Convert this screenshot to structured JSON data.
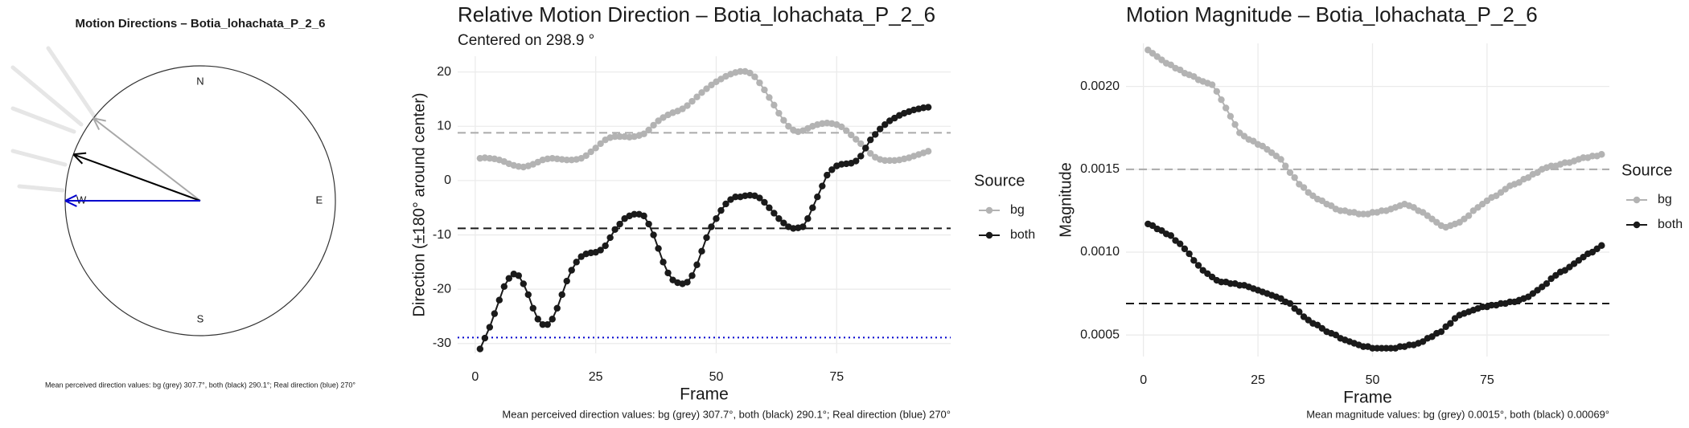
{
  "chart_data": [
    {
      "type": "compass",
      "title": "Motion Directions – Botia_lohachata_P_2_6",
      "labels": [
        "N",
        "E",
        "S",
        "W"
      ],
      "arrows": [
        {
          "color": "#a8a8a8",
          "angle": 307.7
        },
        {
          "color": "#000000",
          "angle": 290.1
        },
        {
          "color": "#0000cd",
          "angle": 270
        }
      ],
      "caption": "Mean perceived direction values: bg (grey) 307.7°, both (black) 290.1°; Real direction (blue) 270°"
    },
    {
      "type": "line",
      "title": "Relative Motion Direction – Botia_lohachata_P_2_6",
      "subtitle": "Centered on  298.9 °",
      "xlabel": "Frame",
      "ylabel": "Direction (±180° around center)",
      "caption": "Mean perceived direction values: bg (grey) 307.7°, both (black) 290.1°; Real direction (blue) 270°",
      "legend_title": "Source",
      "grid": true,
      "xlim": [
        -3.65,
        98.65
      ],
      "xticks": [
        0,
        25,
        50,
        75
      ],
      "ylim": [
        -31.8,
        22.9
      ],
      "yticks": [
        -30,
        -20,
        -10,
        0,
        10,
        20
      ],
      "hlines": [
        {
          "value": 8.8,
          "color": "#aaaaaa",
          "dash": "dashed"
        },
        {
          "value": -8.8,
          "color": "#1a1a1a",
          "dash": "dashed"
        },
        {
          "value": -28.9,
          "color": "#0000cd",
          "dash": "dotted"
        }
      ],
      "x": [
        1,
        2,
        3,
        4,
        5,
        6,
        7,
        8,
        9,
        10,
        11,
        12,
        13,
        14,
        15,
        16,
        17,
        18,
        19,
        20,
        21,
        22,
        23,
        24,
        25,
        26,
        27,
        28,
        29,
        30,
        31,
        32,
        33,
        34,
        35,
        36,
        37,
        38,
        39,
        40,
        41,
        42,
        43,
        44,
        45,
        46,
        47,
        48,
        49,
        50,
        51,
        52,
        53,
        54,
        55,
        56,
        57,
        58,
        59,
        60,
        61,
        62,
        63,
        64,
        65,
        66,
        67,
        68,
        69,
        70,
        71,
        72,
        73,
        74,
        75,
        76,
        77,
        78,
        79,
        80,
        81,
        82,
        83,
        84,
        85,
        86,
        87,
        88,
        89,
        90,
        91,
        92,
        93,
        94
      ],
      "series": [
        {
          "name": "bg",
          "color": "#b3b3b3",
          "values": [
            4.1,
            4.2,
            4.1,
            4.0,
            3.8,
            3.5,
            3.1,
            2.8,
            2.6,
            2.5,
            2.7,
            3.0,
            3.4,
            3.8,
            4.0,
            4.1,
            4.0,
            3.9,
            3.8,
            3.8,
            3.9,
            4.1,
            4.6,
            5.3,
            6.0,
            6.8,
            7.5,
            7.9,
            8.1,
            8.1,
            8.1,
            8.0,
            8.1,
            8.3,
            8.6,
            9.3,
            10.2,
            11.0,
            11.6,
            12.1,
            12.5,
            12.8,
            13.2,
            13.8,
            14.6,
            15.4,
            16.2,
            16.9,
            17.6,
            18.2,
            18.7,
            19.2,
            19.6,
            19.9,
            20.1,
            20.1,
            19.8,
            19.1,
            18.0,
            16.7,
            15.3,
            13.9,
            12.4,
            11.1,
            10.0,
            9.3,
            9.0,
            9.2,
            9.6,
            10.0,
            10.3,
            10.5,
            10.6,
            10.5,
            10.3,
            9.9,
            9.2,
            8.4,
            7.6,
            6.8,
            5.9,
            5.0,
            4.3,
            3.9,
            3.7,
            3.7,
            3.7,
            3.8,
            4.0,
            4.2,
            4.5,
            4.8,
            5.1,
            5.4
          ]
        },
        {
          "name": "both",
          "color": "#1a1a1a",
          "values": [
            -31,
            -29,
            -27,
            -24.5,
            -22,
            -19.5,
            -18,
            -17.2,
            -17.5,
            -19,
            -21,
            -23.5,
            -25.5,
            -26.5,
            -26.5,
            -25.5,
            -23.5,
            -21,
            -18.5,
            -16.5,
            -15,
            -14,
            -13.5,
            -13.3,
            -13.2,
            -12.8,
            -12,
            -10.5,
            -9,
            -8,
            -7,
            -6.5,
            -6.2,
            -6.2,
            -6.5,
            -8,
            -10,
            -12.5,
            -15,
            -17,
            -18.3,
            -18.8,
            -19,
            -18.7,
            -17.5,
            -15.5,
            -13,
            -10.5,
            -8.5,
            -7,
            -5.5,
            -4.3,
            -3.5,
            -3,
            -3,
            -2.8,
            -2.7,
            -2.8,
            -3.2,
            -4,
            -5,
            -6,
            -7,
            -7.8,
            -8.5,
            -8.8,
            -8.7,
            -8.5,
            -7,
            -5,
            -3,
            -1,
            1,
            2,
            2.7,
            3,
            3.1,
            3.2,
            3.6,
            4.5,
            6,
            7.5,
            8.5,
            9.5,
            10.3,
            11,
            11.5,
            12,
            12.4,
            12.7,
            13,
            13.2,
            13.4,
            13.5
          ]
        }
      ]
    },
    {
      "type": "line",
      "title": "Motion Magnitude – Botia_lohachata_P_2_6",
      "xlabel": "Frame",
      "ylabel": "Magnitude",
      "caption": "Mean magnitude values: bg (grey) 0.0015°, both (black) 0.00069°",
      "legend_title": "Source",
      "grid": true,
      "xlim": [
        -3.8,
        101.7
      ],
      "xticks": [
        0,
        25,
        50,
        75
      ],
      "ylim": [
        0.00037,
        0.00226
      ],
      "yticks": [
        {
          "value": 0.0005,
          "label": "0.0005"
        },
        {
          "value": 0.001,
          "label": "0.0010"
        },
        {
          "value": 0.0015,
          "label": "0.0015"
        },
        {
          "value": 0.002,
          "label": "0.0020"
        }
      ],
      "hlines": [
        {
          "value": 0.0015,
          "color": "#aaaaaa",
          "dash": "dashed"
        },
        {
          "value": 0.00069,
          "color": "#1a1a1a",
          "dash": "dashed"
        }
      ],
      "x": [
        1,
        2,
        3,
        4,
        5,
        6,
        7,
        8,
        9,
        10,
        11,
        12,
        13,
        14,
        15,
        16,
        17,
        18,
        19,
        20,
        21,
        22,
        23,
        24,
        25,
        26,
        27,
        28,
        29,
        30,
        31,
        32,
        33,
        34,
        35,
        36,
        37,
        38,
        39,
        40,
        41,
        42,
        43,
        44,
        45,
        46,
        47,
        48,
        49,
        50,
        51,
        52,
        53,
        54,
        55,
        56,
        57,
        58,
        59,
        60,
        61,
        62,
        63,
        64,
        65,
        66,
        67,
        68,
        69,
        70,
        71,
        72,
        73,
        74,
        75,
        76,
        77,
        78,
        79,
        80,
        81,
        82,
        83,
        84,
        85,
        86,
        87,
        88,
        89,
        90,
        91,
        92,
        93,
        94,
        95,
        96,
        97,
        98,
        99,
        100
      ],
      "series": [
        {
          "name": "bg",
          "color": "#b3b3b3",
          "values": [
            0.00222,
            0.0022,
            0.00218,
            0.00216,
            0.00214,
            0.00213,
            0.00211,
            0.0021,
            0.00208,
            0.00207,
            0.00206,
            0.00204,
            0.00203,
            0.00202,
            0.00201,
            0.00197,
            0.00192,
            0.00187,
            0.00182,
            0.00177,
            0.00172,
            0.0017,
            0.00168,
            0.00167,
            0.00165,
            0.00164,
            0.00162,
            0.0016,
            0.00158,
            0.00156,
            0.00152,
            0.00148,
            0.00145,
            0.00141,
            0.00139,
            0.00136,
            0.00134,
            0.00132,
            0.00131,
            0.00129,
            0.00128,
            0.00126,
            0.00125,
            0.00125,
            0.00124,
            0.00124,
            0.00123,
            0.00123,
            0.00123,
            0.00124,
            0.00124,
            0.00125,
            0.00125,
            0.00126,
            0.00127,
            0.00128,
            0.00129,
            0.00128,
            0.00127,
            0.00125,
            0.00124,
            0.00122,
            0.0012,
            0.00118,
            0.00116,
            0.00115,
            0.00116,
            0.00117,
            0.00118,
            0.0012,
            0.00122,
            0.00125,
            0.00127,
            0.00129,
            0.00131,
            0.00133,
            0.00134,
            0.00136,
            0.00138,
            0.0014,
            0.00141,
            0.00142,
            0.00144,
            0.00145,
            0.00147,
            0.00148,
            0.0015,
            0.00151,
            0.00152,
            0.00152,
            0.00153,
            0.00154,
            0.00154,
            0.00155,
            0.00156,
            0.00157,
            0.00157,
            0.00158,
            0.00158,
            0.00159
          ]
        },
        {
          "name": "both",
          "color": "#1a1a1a",
          "values": [
            0.00117,
            0.00116,
            0.00114,
            0.00113,
            0.00111,
            0.0011,
            0.00107,
            0.00105,
            0.00102,
            0.00099,
            0.00095,
            0.00092,
            0.00089,
            0.00087,
            0.00085,
            0.00083,
            0.00082,
            0.00082,
            0.00081,
            0.00081,
            0.0008,
            0.0008,
            0.00079,
            0.00078,
            0.00077,
            0.00076,
            0.00075,
            0.00074,
            0.00073,
            0.00072,
            0.0007,
            0.00069,
            0.00066,
            0.00064,
            0.00061,
            0.00059,
            0.00057,
            0.00056,
            0.00054,
            0.00052,
            0.00051,
            0.0005,
            0.00048,
            0.00047,
            0.00046,
            0.00045,
            0.00044,
            0.00043,
            0.00043,
            0.00042,
            0.00042,
            0.00042,
            0.00042,
            0.00042,
            0.00042,
            0.00043,
            0.00043,
            0.00044,
            0.00044,
            0.00045,
            0.00046,
            0.00048,
            0.00049,
            0.00051,
            0.00052,
            0.00055,
            0.00057,
            0.0006,
            0.00062,
            0.00063,
            0.00064,
            0.00065,
            0.00066,
            0.00067,
            0.00067,
            0.00068,
            0.00068,
            0.00069,
            0.00069,
            0.0007,
            0.0007,
            0.00071,
            0.00072,
            0.00073,
            0.00075,
            0.00077,
            0.00079,
            0.00081,
            0.00084,
            0.00086,
            0.00088,
            0.00089,
            0.00091,
            0.00093,
            0.00095,
            0.00097,
            0.00099,
            0.001,
            0.00102,
            0.00104
          ]
        }
      ]
    }
  ]
}
